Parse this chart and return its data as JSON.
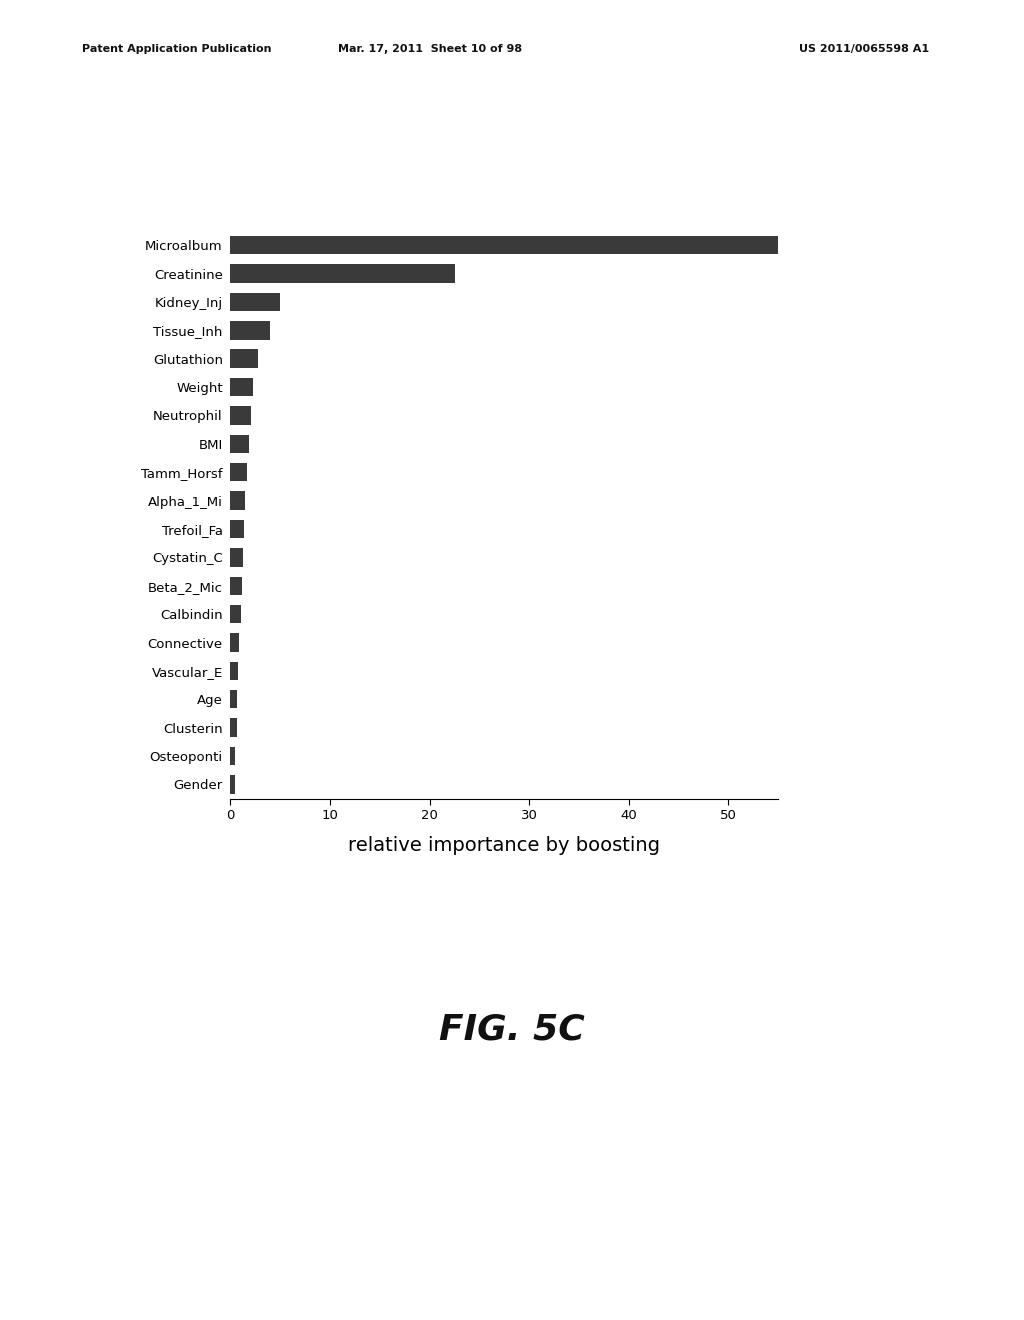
{
  "categories": [
    "Microalbum",
    "Creatinine",
    "Kidney_Inj",
    "Tissue_Inh",
    "Glutathion",
    "Weight",
    "Neutrophil",
    "BMI",
    "Tamm_Horsf",
    "Alpha_1_Mi",
    "Trefoil_Fa",
    "Cystatin_C",
    "Beta_2_Mic",
    "Calbindin",
    "Connective",
    "Vascular_E",
    "Age",
    "Clusterin",
    "Osteoponti",
    "Gender"
  ],
  "values": [
    55.0,
    22.5,
    5.0,
    4.0,
    2.8,
    2.3,
    2.1,
    1.9,
    1.7,
    1.5,
    1.4,
    1.3,
    1.2,
    1.05,
    0.9,
    0.8,
    0.7,
    0.65,
    0.5,
    0.45
  ],
  "bar_color": "#3a3a3a",
  "xlabel": "relative importance by boosting",
  "xlim": [
    0,
    55
  ],
  "xticks": [
    0,
    10,
    20,
    30,
    40,
    50
  ],
  "background_color": "#ffffff",
  "header_left": "Patent Application Publication",
  "header_mid": "Mar. 17, 2011  Sheet 10 of 98",
  "header_right": "US 2011/0065598 A1",
  "fig_label": "FIG. 5C",
  "label_fontsize": 9.5,
  "tick_fontsize": 9.5,
  "xlabel_fontsize": 14,
  "fig_label_fontsize": 26,
  "header_fontsize": 8
}
